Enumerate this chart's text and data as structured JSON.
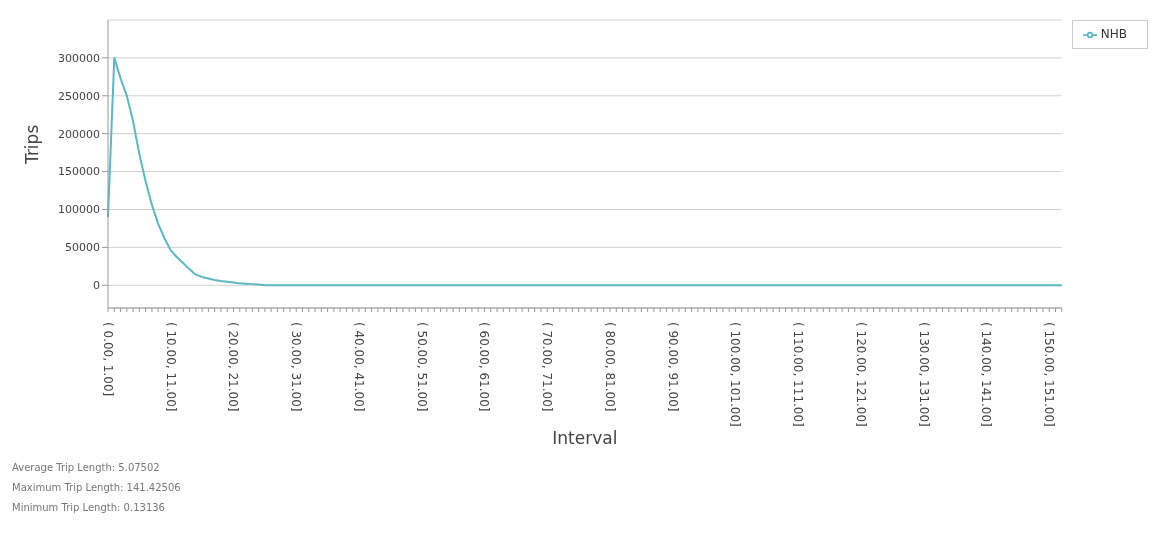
{
  "chart_data": {
    "type": "line",
    "xlabel": "Interval",
    "ylabel": "Trips",
    "categories": [
      "( 0.00, 1.00]",
      null,
      null,
      null,
      null,
      null,
      null,
      null,
      null,
      null,
      "( 10.00, 11.00]",
      null,
      null,
      null,
      null,
      null,
      null,
      null,
      null,
      null,
      "( 20.00, 21.00]",
      null,
      null,
      null,
      null,
      null,
      null,
      null,
      null,
      null,
      "( 30.00, 31.00]",
      null,
      null,
      null,
      null,
      null,
      null,
      null,
      null,
      null,
      "( 40.00, 41.00]",
      null,
      null,
      null,
      null,
      null,
      null,
      null,
      null,
      null,
      "( 50.00, 51.00]",
      null,
      null,
      null,
      null,
      null,
      null,
      null,
      null,
      null,
      "( 60.00, 61.00]",
      null,
      null,
      null,
      null,
      null,
      null,
      null,
      null,
      null,
      "( 70.00, 71.00]",
      null,
      null,
      null,
      null,
      null,
      null,
      null,
      null,
      null,
      "( 80.00, 81.00]",
      null,
      null,
      null,
      null,
      null,
      null,
      null,
      null,
      null,
      "( 90.00, 91.00]",
      null,
      null,
      null,
      null,
      null,
      null,
      null,
      null,
      null,
      "( 100.00, 101.00]",
      null,
      null,
      null,
      null,
      null,
      null,
      null,
      null,
      null,
      "( 110.00, 111.00]",
      null,
      null,
      null,
      null,
      null,
      null,
      null,
      null,
      null,
      "( 120.00, 121.00]",
      null,
      null,
      null,
      null,
      null,
      null,
      null,
      null,
      null,
      "( 130.00, 131.00]",
      null,
      null,
      null,
      null,
      null,
      null,
      null,
      null,
      null,
      "( 140.00, 141.00]",
      null,
      null,
      null,
      null,
      null,
      null,
      null,
      null,
      null,
      "( 150.00, 151.00]",
      null,
      null
    ],
    "series": [
      {
        "name": "NHB",
        "color": "#5bb8c4",
        "values": [
          90000,
          300000,
          273000,
          250000,
          216000,
          173000,
          137000,
          106000,
          81000,
          62000,
          46000,
          37000,
          29000,
          21000,
          14000,
          11000,
          9000,
          7000,
          5500,
          4500,
          3500,
          2500,
          2000,
          1500,
          1000,
          0,
          0,
          0,
          0,
          0,
          0,
          0,
          0,
          0,
          0,
          0,
          0,
          0,
          0,
          0,
          0,
          0,
          0,
          0,
          0,
          0,
          0,
          0,
          0,
          0,
          0,
          0,
          0,
          0,
          0,
          0,
          0,
          0,
          0,
          0,
          0,
          0,
          0,
          0,
          0,
          0,
          0,
          0,
          0,
          0,
          0,
          0,
          0,
          0,
          0,
          0,
          0,
          0,
          0,
          0,
          0,
          0,
          0,
          0,
          0,
          0,
          0,
          0,
          0,
          0,
          0,
          0,
          0,
          0,
          0,
          0,
          0,
          0,
          0,
          0,
          0,
          0,
          0,
          0,
          0,
          0,
          0,
          0,
          0,
          0,
          0,
          0,
          0,
          0,
          0,
          0,
          0,
          0,
          0,
          0,
          0,
          0,
          0,
          0,
          0,
          0,
          0,
          0,
          0,
          0,
          0,
          0,
          0,
          0,
          0,
          0,
          0,
          0,
          0,
          0,
          0,
          0,
          0,
          0,
          0,
          0,
          0,
          0,
          0,
          0,
          0,
          0,
          0
        ]
      }
    ],
    "ylim": [
      -30000,
      350000
    ],
    "yticks": [
      0,
      50000,
      100000,
      150000,
      200000,
      250000,
      300000
    ],
    "grid": "y",
    "legend": "top right",
    "marker": "none",
    "line_style": "solid",
    "annotations": [
      "Average Trip Length: 5.07502",
      "Maximum Trip Length: 141.42506",
      "Minimum Trip Length: 0.13136"
    ]
  }
}
